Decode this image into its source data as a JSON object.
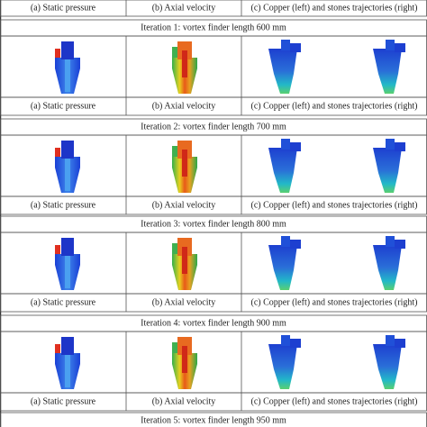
{
  "top_captions": [
    "(a) Static pressure",
    "(b) Axial velocity",
    "(c) Copper (left) and stones trajectories (right)"
  ],
  "iterations": [
    {
      "title": "Iteration 1: vortex finder length 600 mm",
      "captions": [
        "(a) Static pressure",
        "(b) Axial velocity",
        "(c) Copper (left) and stones trajectories (right)"
      ]
    },
    {
      "title": "Iteration 2: vortex finder length 700 mm",
      "captions": [
        "(a) Static pressure",
        "(b) Axial velocity",
        "(c) Copper (left) and stones trajectories (right)"
      ]
    },
    {
      "title": "Iteration 3: vortex finder length 800 mm",
      "captions": [
        "(a) Static pressure",
        "(b) Axial velocity",
        "(c) Copper (left) and stones trajectories (right)"
      ]
    },
    {
      "title": "Iteration 4: vortex finder length 900 mm",
      "captions": [
        "(a) Static pressure",
        "(b) Axial velocity",
        "(c) Copper (left) and stones trajectories (right)"
      ]
    },
    {
      "title": "Iteration 5: vortex finder length 950 mm"
    }
  ]
}
